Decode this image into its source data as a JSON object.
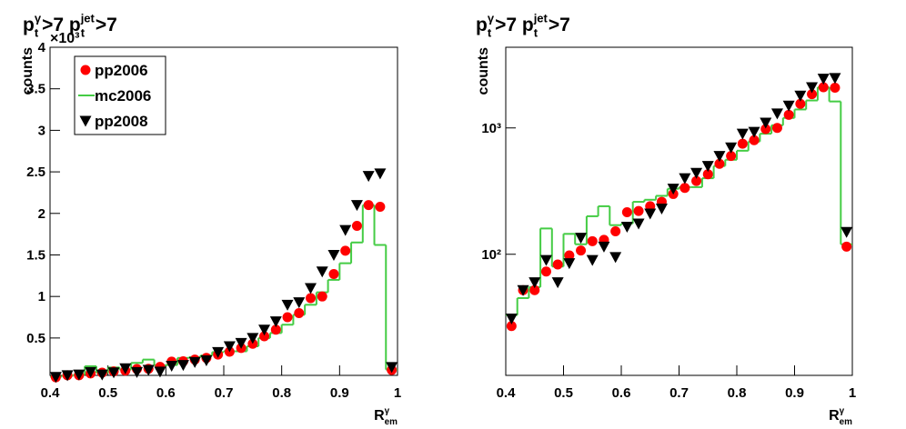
{
  "chart_data": [
    {
      "type": "histogram",
      "title": [
        "p",
        "γ",
        "t",
        ">7 p",
        "jet",
        "t",
        ">7"
      ],
      "y_label": "counts",
      "x_label": [
        "R",
        "γ",
        "em"
      ],
      "y_exponent": "×10³",
      "x": [
        0.41,
        0.43,
        0.45,
        0.47,
        0.49,
        0.51,
        0.53,
        0.55,
        0.57,
        0.59,
        0.61,
        0.63,
        0.65,
        0.67,
        0.69,
        0.71,
        0.73,
        0.75,
        0.77,
        0.79,
        0.81,
        0.83,
        0.85,
        0.87,
        0.89,
        0.91,
        0.93,
        0.95,
        0.97,
        0.99
      ],
      "bins": [
        0.4,
        0.42,
        0.44,
        0.46,
        0.48,
        0.5,
        0.52,
        0.54,
        0.56,
        0.58,
        0.6,
        0.62,
        0.64,
        0.66,
        0.68,
        0.7,
        0.72,
        0.74,
        0.76,
        0.78,
        0.8,
        0.82,
        0.84,
        0.86,
        0.88,
        0.9,
        0.92,
        0.94,
        0.96,
        0.98,
        1.0
      ],
      "xlim": [
        0.4,
        1
      ],
      "xticks": [
        0.4,
        0.5,
        0.6,
        0.7,
        0.8,
        0.9,
        1
      ],
      "ylim": [
        0.05,
        4
      ],
      "yticks": [
        0.5,
        1,
        1.5,
        2,
        2.5,
        3,
        3.5,
        4
      ],
      "log_y": false,
      "legend": "upper left",
      "series": [
        {
          "name": "pp2006",
          "color": "#ff0000",
          "marker": "circle",
          "values": [
            0.027,
            0.052,
            0.052,
            0.073,
            0.083,
            0.098,
            0.107,
            0.127,
            0.13,
            0.152,
            0.215,
            0.22,
            0.24,
            0.26,
            0.3,
            0.335,
            0.38,
            0.43,
            0.52,
            0.6,
            0.75,
            0.8,
            0.98,
            1.0,
            1.27,
            1.55,
            1.85,
            2.1,
            2.08,
            0.115
          ]
        },
        {
          "name": "mc2006",
          "color": "#44cc44",
          "drawstyle": "steps",
          "values": [
            0.033,
            0.045,
            0.055,
            0.16,
            0.08,
            0.145,
            0.12,
            0.2,
            0.24,
            0.17,
            0.175,
            0.26,
            0.27,
            0.29,
            0.33,
            0.34,
            0.34,
            0.4,
            0.5,
            0.56,
            0.66,
            0.78,
            0.9,
            1.05,
            1.2,
            1.4,
            1.65,
            2.1,
            1.62,
            0.12
          ]
        },
        {
          "name": "pp2008",
          "color": "#000000",
          "marker": "triangle-down",
          "values": [
            0.031,
            0.052,
            0.06,
            0.09,
            0.06,
            0.085,
            0.135,
            0.09,
            0.115,
            0.095,
            0.165,
            0.175,
            0.21,
            0.23,
            0.33,
            0.4,
            0.44,
            0.5,
            0.6,
            0.7,
            0.9,
            0.93,
            1.1,
            1.3,
            1.5,
            1.8,
            2.1,
            2.45,
            2.48,
            0.15
          ]
        }
      ]
    },
    {
      "type": "histogram",
      "title": [
        "p",
        "γ",
        "t",
        ">7 p",
        "jet",
        "t",
        ">7"
      ],
      "y_label": "counts",
      "x_label": [
        "R",
        "γ",
        "em"
      ],
      "x": [
        0.41,
        0.43,
        0.45,
        0.47,
        0.49,
        0.51,
        0.53,
        0.55,
        0.57,
        0.59,
        0.61,
        0.63,
        0.65,
        0.67,
        0.69,
        0.71,
        0.73,
        0.75,
        0.77,
        0.79,
        0.81,
        0.83,
        0.85,
        0.87,
        0.89,
        0.91,
        0.93,
        0.95,
        0.97,
        0.99
      ],
      "bins": [
        0.4,
        0.42,
        0.44,
        0.46,
        0.48,
        0.5,
        0.52,
        0.54,
        0.56,
        0.58,
        0.6,
        0.62,
        0.64,
        0.66,
        0.68,
        0.7,
        0.72,
        0.74,
        0.76,
        0.78,
        0.8,
        0.82,
        0.84,
        0.86,
        0.88,
        0.9,
        0.92,
        0.94,
        0.96,
        0.98,
        1.0
      ],
      "xlim": [
        0.4,
        1
      ],
      "xticks": [
        0.4,
        0.5,
        0.6,
        0.7,
        0.8,
        0.9,
        1
      ],
      "ylim": [
        11,
        4350
      ],
      "yticks": [
        {
          "value": 100,
          "label": "10²"
        },
        {
          "value": 1000,
          "label": "10³"
        }
      ],
      "log_y": true,
      "series": [
        {
          "color": "#ff0000",
          "marker": "circle",
          "values": [
            27,
            52,
            52,
            73,
            83,
            98,
            107,
            127,
            130,
            152,
            215,
            220,
            240,
            260,
            300,
            335,
            380,
            430,
            520,
            600,
            750,
            800,
            980,
            1000,
            1270,
            1550,
            1850,
            2100,
            2080,
            115
          ]
        },
        {
          "color": "#44cc44",
          "drawstyle": "steps",
          "values": [
            33,
            45,
            55,
            160,
            80,
            145,
            120,
            200,
            240,
            170,
            175,
            260,
            270,
            290,
            330,
            340,
            340,
            400,
            500,
            560,
            660,
            780,
            900,
            1050,
            1200,
            1400,
            1650,
            2100,
            1620,
            120
          ]
        },
        {
          "color": "#000000",
          "marker": "triangle-down",
          "values": [
            31,
            52,
            60,
            90,
            60,
            85,
            135,
            90,
            115,
            95,
            165,
            175,
            210,
            230,
            330,
            400,
            440,
            500,
            600,
            700,
            900,
            930,
            1100,
            1300,
            1500,
            1800,
            2100,
            2450,
            2480,
            150
          ]
        }
      ]
    }
  ]
}
